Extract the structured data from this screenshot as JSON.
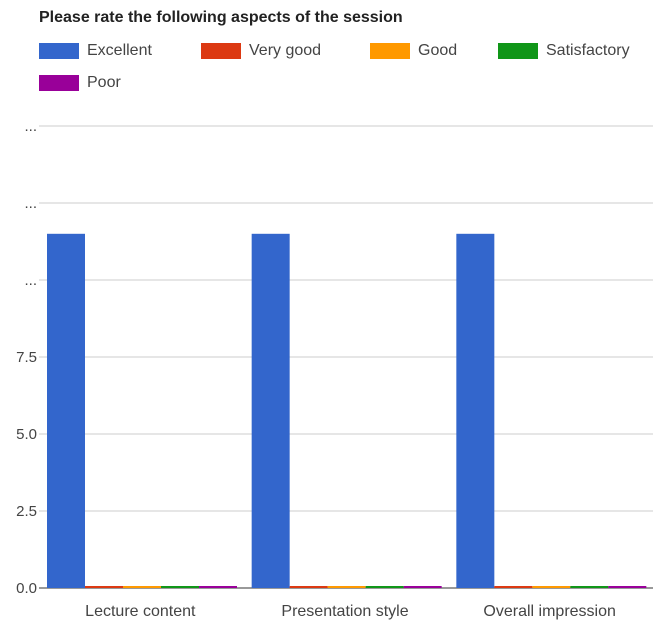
{
  "chart_data": {
    "type": "bar",
    "title": "Please rate the following aspects of the session",
    "categories": [
      "Lecture content",
      "Presentation style",
      "Overall impression"
    ],
    "series": [
      {
        "name": "Excellent",
        "color": "#3366cc",
        "values": [
          11.5,
          11.5,
          11.5
        ]
      },
      {
        "name": "Very good",
        "color": "#dc3912",
        "values": [
          0,
          0,
          0
        ]
      },
      {
        "name": "Good",
        "color": "#ff9900",
        "values": [
          0,
          0,
          0
        ]
      },
      {
        "name": "Satisfactory",
        "color": "#109618",
        "values": [
          0,
          0,
          0
        ]
      },
      {
        "name": "Poor",
        "color": "#990099",
        "values": [
          0,
          0,
          0
        ]
      }
    ],
    "y_ticks": [
      "0.0",
      "2.5",
      "5.0",
      "7.5",
      "...",
      "...",
      "..."
    ],
    "ylim": [
      0,
      15
    ],
    "grid": true,
    "legend_position": "top"
  }
}
